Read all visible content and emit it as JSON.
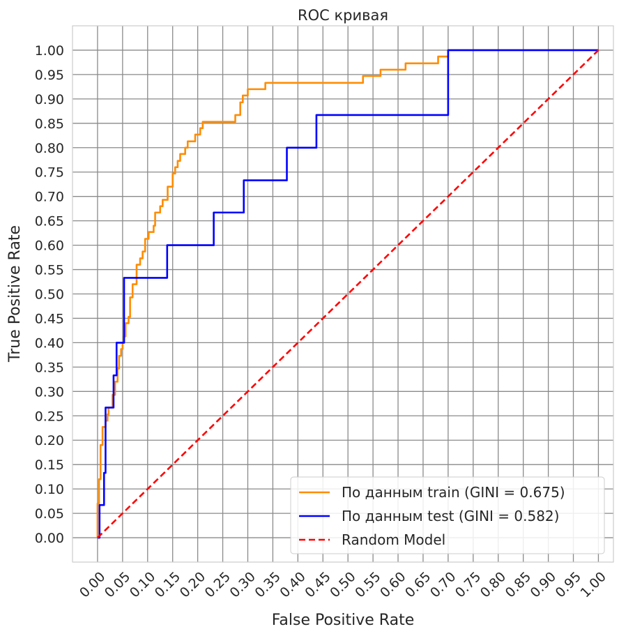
{
  "chart_data": {
    "type": "line",
    "title": "ROC кривая",
    "xlabel": "False Positive Rate",
    "ylabel": "True Positive Rate",
    "xlim": [
      -0.05,
      1.03
    ],
    "ylim": [
      -0.05,
      1.05
    ],
    "x_ticks": [
      "0.00",
      "0.05",
      "0.10",
      "0.15",
      "0.20",
      "0.25",
      "0.30",
      "0.35",
      "0.40",
      "0.45",
      "0.50",
      "0.55",
      "0.60",
      "0.65",
      "0.70",
      "0.75",
      "0.80",
      "0.85",
      "0.90",
      "0.95",
      "1.00"
    ],
    "y_ticks": [
      "0.00",
      "0.05",
      "0.10",
      "0.15",
      "0.20",
      "0.25",
      "0.30",
      "0.35",
      "0.40",
      "0.45",
      "0.50",
      "0.55",
      "0.60",
      "0.65",
      "0.70",
      "0.75",
      "0.80",
      "0.85",
      "0.90",
      "0.95",
      "1.00"
    ],
    "grid": true,
    "legend_position": "lower-right",
    "series": [
      {
        "name": "По данным train (GINI = 0.675)",
        "color": "#ff8c00",
        "style": "solid",
        "points": [
          [
            0,
            0
          ],
          [
            0,
            0.07
          ],
          [
            0.003,
            0.07
          ],
          [
            0.003,
            0.12
          ],
          [
            0.006,
            0.12
          ],
          [
            0.006,
            0.19
          ],
          [
            0.01,
            0.19
          ],
          [
            0.01,
            0.227
          ],
          [
            0.016,
            0.227
          ],
          [
            0.016,
            0.24
          ],
          [
            0.02,
            0.24
          ],
          [
            0.02,
            0.253
          ],
          [
            0.022,
            0.253
          ],
          [
            0.022,
            0.267
          ],
          [
            0.03,
            0.267
          ],
          [
            0.03,
            0.293
          ],
          [
            0.035,
            0.293
          ],
          [
            0.035,
            0.32
          ],
          [
            0.04,
            0.32
          ],
          [
            0.04,
            0.347
          ],
          [
            0.043,
            0.347
          ],
          [
            0.043,
            0.373
          ],
          [
            0.047,
            0.373
          ],
          [
            0.047,
            0.387
          ],
          [
            0.05,
            0.387
          ],
          [
            0.05,
            0.4
          ],
          [
            0.053,
            0.4
          ],
          [
            0.053,
            0.413
          ],
          [
            0.056,
            0.413
          ],
          [
            0.056,
            0.44
          ],
          [
            0.062,
            0.44
          ],
          [
            0.062,
            0.453
          ],
          [
            0.065,
            0.453
          ],
          [
            0.065,
            0.493
          ],
          [
            0.07,
            0.493
          ],
          [
            0.07,
            0.52
          ],
          [
            0.078,
            0.52
          ],
          [
            0.078,
            0.56
          ],
          [
            0.085,
            0.56
          ],
          [
            0.085,
            0.573
          ],
          [
            0.09,
            0.573
          ],
          [
            0.09,
            0.587
          ],
          [
            0.095,
            0.587
          ],
          [
            0.095,
            0.613
          ],
          [
            0.102,
            0.613
          ],
          [
            0.102,
            0.627
          ],
          [
            0.112,
            0.627
          ],
          [
            0.112,
            0.64
          ],
          [
            0.115,
            0.64
          ],
          [
            0.115,
            0.667
          ],
          [
            0.125,
            0.667
          ],
          [
            0.125,
            0.68
          ],
          [
            0.13,
            0.68
          ],
          [
            0.13,
            0.693
          ],
          [
            0.14,
            0.693
          ],
          [
            0.14,
            0.72
          ],
          [
            0.15,
            0.72
          ],
          [
            0.15,
            0.747
          ],
          [
            0.155,
            0.747
          ],
          [
            0.155,
            0.76
          ],
          [
            0.16,
            0.76
          ],
          [
            0.16,
            0.773
          ],
          [
            0.165,
            0.773
          ],
          [
            0.165,
            0.787
          ],
          [
            0.175,
            0.787
          ],
          [
            0.175,
            0.8
          ],
          [
            0.18,
            0.8
          ],
          [
            0.18,
            0.813
          ],
          [
            0.195,
            0.813
          ],
          [
            0.195,
            0.827
          ],
          [
            0.205,
            0.827
          ],
          [
            0.205,
            0.84
          ],
          [
            0.21,
            0.84
          ],
          [
            0.21,
            0.853
          ],
          [
            0.275,
            0.853
          ],
          [
            0.275,
            0.867
          ],
          [
            0.285,
            0.867
          ],
          [
            0.285,
            0.893
          ],
          [
            0.29,
            0.893
          ],
          [
            0.29,
            0.907
          ],
          [
            0.3,
            0.907
          ],
          [
            0.3,
            0.92
          ],
          [
            0.335,
            0.92
          ],
          [
            0.335,
            0.933
          ],
          [
            0.53,
            0.933
          ],
          [
            0.53,
            0.947
          ],
          [
            0.565,
            0.947
          ],
          [
            0.565,
            0.96
          ],
          [
            0.615,
            0.96
          ],
          [
            0.615,
            0.973
          ],
          [
            0.68,
            0.973
          ],
          [
            0.68,
            0.987
          ],
          [
            0.7,
            0.987
          ],
          [
            0.7,
            1.0
          ],
          [
            1.0,
            1.0
          ]
        ]
      },
      {
        "name": "По данным test (GINI = 0.582)",
        "color": "#0000ff",
        "style": "solid",
        "points": [
          [
            0,
            0
          ],
          [
            0.004,
            0
          ],
          [
            0.004,
            0.067
          ],
          [
            0.013,
            0.067
          ],
          [
            0.013,
            0.133
          ],
          [
            0.016,
            0.133
          ],
          [
            0.016,
            0.267
          ],
          [
            0.032,
            0.267
          ],
          [
            0.032,
            0.333
          ],
          [
            0.038,
            0.333
          ],
          [
            0.038,
            0.4
          ],
          [
            0.053,
            0.4
          ],
          [
            0.053,
            0.533
          ],
          [
            0.139,
            0.533
          ],
          [
            0.139,
            0.6
          ],
          [
            0.232,
            0.6
          ],
          [
            0.232,
            0.667
          ],
          [
            0.292,
            0.667
          ],
          [
            0.292,
            0.733
          ],
          [
            0.378,
            0.733
          ],
          [
            0.378,
            0.8
          ],
          [
            0.437,
            0.8
          ],
          [
            0.437,
            0.867
          ],
          [
            0.7,
            0.867
          ],
          [
            0.7,
            1.0
          ],
          [
            1.0,
            1.0
          ]
        ]
      },
      {
        "name": "Random Model",
        "color": "#ff0000",
        "style": "dashed",
        "points": [
          [
            0,
            0
          ],
          [
            1,
            1
          ]
        ]
      }
    ]
  }
}
